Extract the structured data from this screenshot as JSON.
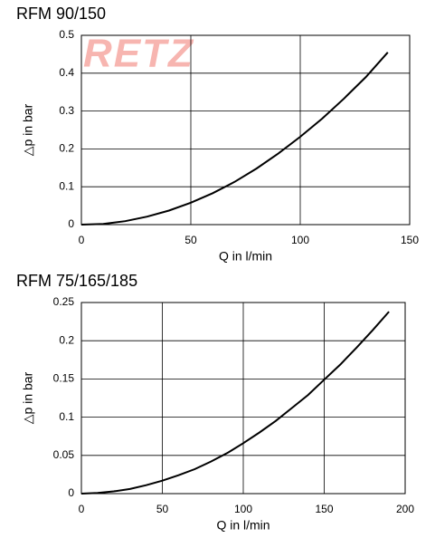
{
  "watermark": "RETZ",
  "chart_data": [
    {
      "type": "line",
      "title": "RFM 90/150",
      "x_label": "Q in l/min",
      "y_label": "△p in bar",
      "x": [
        0,
        10,
        20,
        30,
        40,
        50,
        60,
        70,
        80,
        90,
        100,
        110,
        120,
        130,
        140
      ],
      "series": [
        {
          "name": "RFM 90/150",
          "color": "#000000",
          "values": [
            0,
            0.002,
            0.009,
            0.021,
            0.037,
            0.058,
            0.083,
            0.113,
            0.148,
            0.188,
            0.232,
            0.28,
            0.333,
            0.39,
            0.455
          ]
        }
      ],
      "xlim": [
        0,
        150
      ],
      "xticks": [
        0,
        50,
        100,
        150
      ],
      "ylim": [
        0,
        0.5
      ],
      "yticks": [
        0,
        0.1,
        0.2,
        0.3,
        0.4,
        0.5
      ],
      "grid": true
    },
    {
      "type": "line",
      "title": "RFM 75/165/185",
      "x_label": "Q in l/min",
      "y_label": "△p in bar",
      "x": [
        0,
        10,
        20,
        30,
        40,
        50,
        60,
        70,
        80,
        90,
        100,
        110,
        120,
        130,
        140,
        150,
        160,
        170,
        180,
        190
      ],
      "series": [
        {
          "name": "RFM 75/165/185",
          "color": "#000000",
          "values": [
            0,
            0.001,
            0.003,
            0.006,
            0.011,
            0.017,
            0.024,
            0.032,
            0.042,
            0.053,
            0.066,
            0.08,
            0.095,
            0.112,
            0.129,
            0.149,
            0.169,
            0.191,
            0.214,
            0.238
          ]
        }
      ],
      "xlim": [
        0,
        200
      ],
      "xticks": [
        0,
        50,
        100,
        150,
        200
      ],
      "ylim": [
        0,
        0.25
      ],
      "yticks": [
        0,
        0.05,
        0.1,
        0.15,
        0.2,
        0.25
      ],
      "grid": true
    }
  ]
}
